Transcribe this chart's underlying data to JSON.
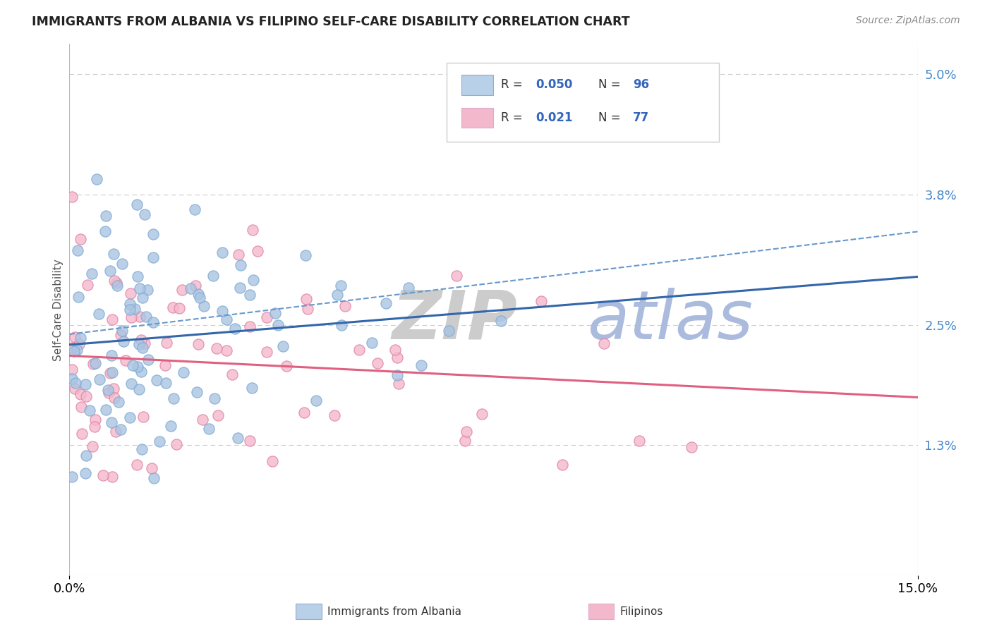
{
  "title": "IMMIGRANTS FROM ALBANIA VS FILIPINO SELF-CARE DISABILITY CORRELATION CHART",
  "source": "Source: ZipAtlas.com",
  "ylabel": "Self-Care Disability",
  "x_min": 0.0,
  "x_max": 15.0,
  "y_min": 0.0,
  "y_max": 5.3,
  "x_ticks": [
    0.0,
    15.0
  ],
  "x_tick_labels": [
    "0.0%",
    "15.0%"
  ],
  "y_ticks_right": [
    1.3,
    2.5,
    3.8,
    5.0
  ],
  "y_tick_labels_right": [
    "1.3%",
    "2.5%",
    "3.8%",
    "5.0%"
  ],
  "series": [
    {
      "name": "Immigrants from Albania",
      "R": 0.05,
      "N": 96,
      "color": "#aac4e2",
      "edge_color": "#7baad4",
      "line_color": "#3366aa",
      "line_style": "-"
    },
    {
      "name": "Filipinos",
      "R": 0.021,
      "N": 77,
      "color": "#f4b8cc",
      "edge_color": "#e080a0",
      "line_color": "#e06080",
      "line_style": "-"
    }
  ],
  "dashed_line_color": "#6699cc",
  "watermark_zip_color": "#cccccc",
  "watermark_atlas_color": "#aabbdd",
  "legend_box_colors": [
    "#b8d0e8",
    "#f4b8cc"
  ],
  "background_color": "#ffffff",
  "grid_color": "#cccccc",
  "title_color": "#222222",
  "source_color": "#888888"
}
